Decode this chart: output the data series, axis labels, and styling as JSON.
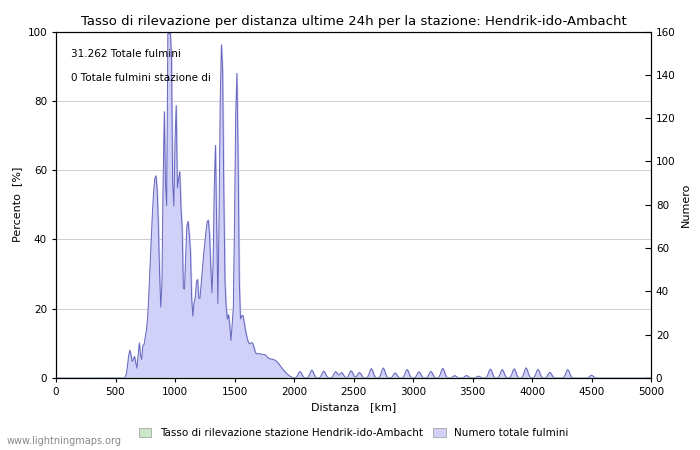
{
  "title": "Tasso di rilevazione per distanza ultime 24h per la stazione: Hendrik-ido-Ambacht",
  "xlabel": "Distanza   [km]",
  "ylabel_left": "Percento  [%]",
  "ylabel_right": "Numero",
  "annotation_line1": "31.262 Totale fulmini",
  "annotation_line2": "0 Totale fulmini stazione di",
  "legend_label_green": "Tasso di rilevazione stazione Hendrik-ido-Ambacht",
  "legend_label_blue": "Numero totale fulmini",
  "watermark": "www.lightningmaps.org",
  "xlim": [
    0,
    5000
  ],
  "ylim_left": [
    0,
    100
  ],
  "ylim_right": [
    0,
    160
  ],
  "xticks": [
    0,
    500,
    1000,
    1500,
    2000,
    2500,
    3000,
    3500,
    4000,
    4500,
    5000
  ],
  "yticks_left": [
    0,
    20,
    40,
    60,
    80,
    100
  ],
  "yticks_right": [
    0,
    20,
    40,
    60,
    80,
    100,
    120,
    140,
    160
  ],
  "fill_color_blue": "#d0d0f8",
  "line_color_blue": "#6666bb",
  "fill_color_green": "#c8e8c8",
  "line_color_green": "#66aa66",
  "background_color": "#ffffff",
  "grid_color": "#bbbbbb"
}
